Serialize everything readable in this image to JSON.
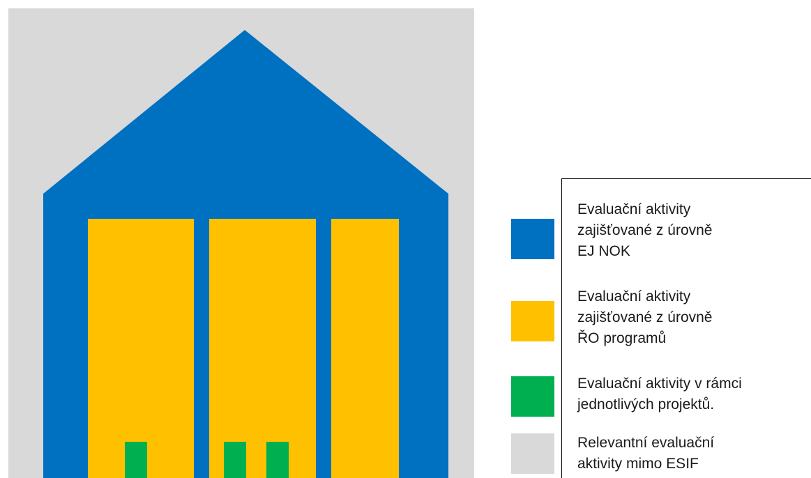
{
  "colors": {
    "background_grey": "#D9D9D9",
    "blue": "#0070C0",
    "yellow": "#FFC000",
    "green": "#00B050",
    "text": "#1a1a1a"
  },
  "legend": [
    {
      "key": "blue",
      "color": "#0070C0",
      "lines": [
        "Evaluační aktivity",
        "zajišťované z úrovně",
        "EJ NOK"
      ]
    },
    {
      "key": "yellow",
      "color": "#FFC000",
      "lines": [
        "Evaluační aktivity",
        "zajišťované z úrovně",
        "ŘO programů"
      ]
    },
    {
      "key": "green",
      "color": "#00B050",
      "lines": [
        "Evaluační aktivity v rámci",
        "jednotlivých projektů."
      ]
    },
    {
      "key": "grey",
      "color": "#D9D9D9",
      "lines": [
        "Relevantní evaluační",
        "aktivity mimo ESIF"
      ]
    }
  ]
}
